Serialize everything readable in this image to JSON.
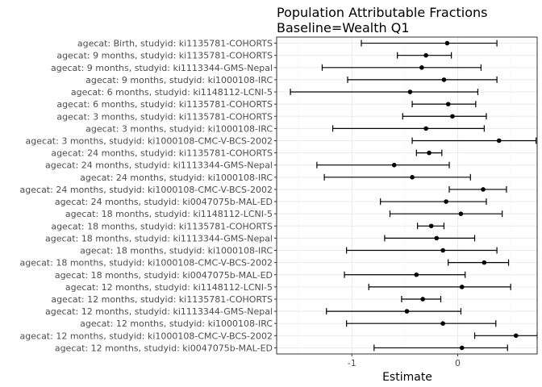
{
  "chart_data": {
    "type": "forest",
    "title": "Population Attributable Fractions",
    "subtitle": "Baseline=Wealth Q1",
    "xlabel": "Estimate",
    "ylabel": "",
    "xlim": [
      -1.71,
      0.75
    ],
    "xticks": [
      -1,
      0
    ],
    "xtick_labels": [
      "-1",
      "0"
    ],
    "grid": true,
    "colors": {
      "panel_border": "#333333",
      "grid_major": "#ebebeb",
      "grid_minor": "#f5f5f5",
      "mark": "#000000"
    },
    "categories": [
      "agecat: Birth, studyid: ki1135781-COHORTS",
      "agecat: 9 months, studyid: ki1135781-COHORTS",
      "agecat: 9 months, studyid: ki1113344-GMS-Nepal",
      "agecat: 9 months, studyid: ki1000108-IRC",
      "agecat: 6 months, studyid: ki1148112-LCNI-5",
      "agecat: 6 months, studyid: ki1135781-COHORTS",
      "agecat: 3 months, studyid: ki1135781-COHORTS",
      "agecat: 3 months, studyid: ki1000108-IRC",
      "agecat: 3 months, studyid: ki1000108-CMC-V-BCS-2002",
      "agecat: 24 months, studyid: ki1135781-COHORTS",
      "agecat: 24 months, studyid: ki1113344-GMS-Nepal",
      "agecat: 24 months, studyid: ki1000108-IRC",
      "agecat: 24 months, studyid: ki1000108-CMC-V-BCS-2002",
      "agecat: 24 months, studyid: ki0047075b-MAL-ED",
      "agecat: 18 months, studyid: ki1148112-LCNI-5",
      "agecat: 18 months, studyid: ki1135781-COHORTS",
      "agecat: 18 months, studyid: ki1113344-GMS-Nepal",
      "agecat: 18 months, studyid: ki1000108-IRC",
      "agecat: 18 months, studyid: ki1000108-CMC-V-BCS-2002",
      "agecat: 18 months, studyid: ki0047075b-MAL-ED",
      "agecat: 12 months, studyid: ki1148112-LCNI-5",
      "agecat: 12 months, studyid: ki1135781-COHORTS",
      "agecat: 12 months, studyid: ki1113344-GMS-Nepal",
      "agecat: 12 months, studyid: ki1000108-IRC",
      "agecat: 12 months, studyid: ki1000108-CMC-V-BCS-2002",
      "agecat: 12 months, studyid: ki0047075b-MAL-ED"
    ],
    "estimate": [
      -0.1,
      -0.3,
      -0.34,
      -0.13,
      -0.45,
      -0.09,
      -0.05,
      -0.3,
      0.39,
      -0.27,
      -0.6,
      -0.43,
      0.24,
      -0.11,
      0.03,
      -0.25,
      -0.2,
      -0.14,
      0.25,
      -0.39,
      0.04,
      -0.33,
      -0.48,
      -0.14,
      0.55,
      0.04
    ],
    "ci_lower": [
      -0.91,
      -0.57,
      -1.28,
      -1.04,
      -1.58,
      -0.43,
      -0.52,
      -1.18,
      -0.43,
      -0.39,
      -1.33,
      -1.26,
      -0.08,
      -0.73,
      -0.64,
      -0.38,
      -0.69,
      -1.05,
      -0.09,
      -1.07,
      -0.84,
      -0.53,
      -1.24,
      -1.05,
      0.16,
      -0.79
    ],
    "ci_upper": [
      0.37,
      -0.06,
      0.22,
      0.37,
      0.19,
      0.17,
      0.27,
      0.25,
      0.74,
      -0.15,
      -0.08,
      0.12,
      0.46,
      0.27,
      0.42,
      -0.13,
      0.16,
      0.37,
      0.48,
      0.07,
      0.5,
      -0.16,
      0.03,
      0.36,
      0.75,
      0.47
    ]
  }
}
